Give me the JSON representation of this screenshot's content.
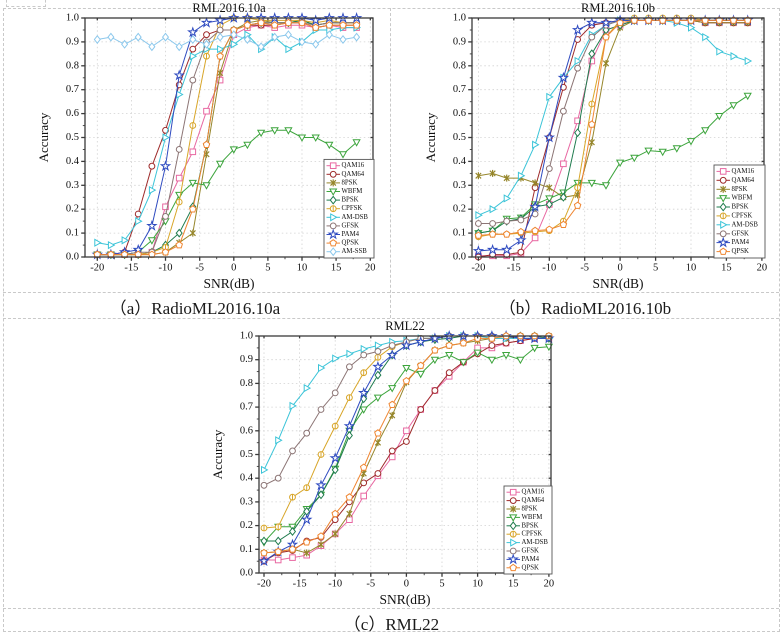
{
  "figure": {
    "captions": {
      "a": "（a）RadioML2016.10a",
      "b": "（b）RadioML2016.10b",
      "c": "（c）RML22"
    }
  },
  "series_styles": {
    "QAM16": {
      "color": "#e868a2",
      "marker": "square"
    },
    "QAM64": {
      "color": "#9e2b2b",
      "marker": "circle"
    },
    "8PSK": {
      "color": "#96862b",
      "marker": "asterisk"
    },
    "WBFM": {
      "color": "#3ca43c",
      "marker": "triangle-down"
    },
    "BPSK": {
      "color": "#1e7b4d",
      "marker": "diamond"
    },
    "CPFSK": {
      "color": "#d8a62a",
      "marker": "circle-vline"
    },
    "AM-DSB": {
      "color": "#3bc4d8",
      "marker": "triangle-right"
    },
    "GFSK": {
      "color": "#8c7575",
      "marker": "circle"
    },
    "PAM4": {
      "color": "#2f4bc0",
      "marker": "star"
    },
    "QPSK": {
      "color": "#ef8632",
      "marker": "pentagon"
    },
    "AM-SSB": {
      "color": "#8cc8ec",
      "marker": "diamond"
    }
  },
  "chart_data": [
    {
      "id": "chart-a",
      "type": "line",
      "title": "RML2016.10a",
      "xlabel": "SNR(dB)",
      "ylabel": "Accuracy",
      "x_ticks": [
        -20,
        -15,
        -10,
        -5,
        0,
        5,
        10,
        15,
        20
      ],
      "y_tick_labels": [
        "0.0",
        "0.1",
        "0.2",
        "0.3",
        "0.4",
        "0.5",
        "0.6",
        "0.7",
        "0.8",
        "0.9",
        "1.0"
      ],
      "xlim": [
        -21.8,
        20.4
      ],
      "ylim": [
        0,
        1
      ],
      "grid": true,
      "legend_position": "bottom-right",
      "x": [
        -20,
        -18,
        -16,
        -14,
        -12,
        -10,
        -8,
        -6,
        -4,
        -2,
        0,
        2,
        4,
        6,
        8,
        10,
        12,
        14,
        16,
        18
      ],
      "series": [
        {
          "name": "QAM16",
          "values": [
            0.01,
            0.01,
            0.01,
            0.01,
            0.02,
            0.21,
            0.33,
            0.44,
            0.61,
            0.74,
            0.93,
            0.96,
            0.97,
            0.96,
            0.97,
            0.97,
            0.96,
            0.97,
            0.96,
            0.96
          ]
        },
        {
          "name": "QAM64",
          "values": [
            0.01,
            0.01,
            0.02,
            0.18,
            0.38,
            0.53,
            0.72,
            0.87,
            0.93,
            0.95,
            0.95,
            0.97,
            0.97,
            0.97,
            0.98,
            0.98,
            0.96,
            0.97,
            0.97,
            0.97
          ]
        },
        {
          "name": "8PSK",
          "values": [
            0.01,
            0.01,
            0.01,
            0.01,
            0.01,
            0.02,
            0.06,
            0.1,
            0.43,
            0.77,
            0.95,
            0.98,
            0.99,
            0.98,
            0.98,
            0.99,
            0.97,
            0.98,
            0.98,
            0.98
          ]
        },
        {
          "name": "WBFM",
          "values": [
            0.01,
            0.01,
            0.01,
            0.02,
            0.07,
            0.15,
            0.26,
            0.31,
            0.3,
            0.39,
            0.45,
            0.47,
            0.52,
            0.53,
            0.53,
            0.5,
            0.5,
            0.47,
            0.43,
            0.48
          ]
        },
        {
          "name": "BPSK",
          "values": [
            0.01,
            0.01,
            0.01,
            0.01,
            0.02,
            0.05,
            0.1,
            0.21,
            0.47,
            0.84,
            0.95,
            0.97,
            0.98,
            0.98,
            0.98,
            0.99,
            0.97,
            0.98,
            0.98,
            0.98
          ]
        },
        {
          "name": "CPFSK",
          "values": [
            0.01,
            0.01,
            0.01,
            0.01,
            0.02,
            0.04,
            0.23,
            0.55,
            0.84,
            0.97,
            1.0,
            1.0,
            0.99,
            0.99,
            0.99,
            0.99,
            0.98,
            0.99,
            0.98,
            0.98
          ]
        },
        {
          "name": "AM-DSB",
          "values": [
            0.06,
            0.05,
            0.07,
            0.15,
            0.28,
            0.5,
            0.68,
            0.84,
            0.87,
            0.87,
            0.89,
            0.93,
            0.87,
            0.92,
            0.87,
            0.9,
            0.95,
            0.95,
            0.96,
            0.96
          ]
        },
        {
          "name": "GFSK",
          "values": [
            0.01,
            0.01,
            0.01,
            0.02,
            0.02,
            0.17,
            0.45,
            0.74,
            0.9,
            0.95,
            0.95,
            0.97,
            0.98,
            0.98,
            0.98,
            0.98,
            0.97,
            0.98,
            0.98,
            0.98
          ]
        },
        {
          "name": "PAM4",
          "values": [
            0.01,
            0.01,
            0.02,
            0.03,
            0.13,
            0.38,
            0.76,
            0.94,
            0.98,
            0.99,
            1.0,
            1.0,
            1.0,
            1.0,
            1.0,
            1.0,
            0.99,
            1.0,
            1.0,
            1.0
          ]
        },
        {
          "name": "QPSK",
          "values": [
            0.01,
            0.01,
            0.01,
            0.01,
            0.01,
            0.02,
            0.05,
            0.2,
            0.47,
            0.84,
            0.95,
            0.97,
            0.98,
            0.97,
            0.98,
            0.98,
            0.96,
            0.97,
            0.97,
            0.97
          ]
        },
        {
          "name": "AM-SSB",
          "values": [
            0.91,
            0.92,
            0.89,
            0.92,
            0.88,
            0.92,
            0.88,
            0.91,
            0.89,
            0.92,
            0.93,
            0.91,
            0.88,
            0.92,
            0.93,
            0.9,
            0.89,
            0.93,
            0.91,
            0.92
          ]
        }
      ]
    },
    {
      "id": "chart-b",
      "type": "line",
      "title": "RML2016.10b",
      "xlabel": "SNR(dB)",
      "ylabel": "Accuracy",
      "x_ticks": [
        -20,
        -15,
        -10,
        -5,
        0,
        5,
        10,
        15,
        20
      ],
      "y_tick_labels": [
        "0.0",
        "0.1",
        "0.2",
        "0.3",
        "0.4",
        "0.5",
        "0.6",
        "0.7",
        "0.8",
        "0.9",
        "1.0"
      ],
      "xlim": [
        -20.9,
        20.3
      ],
      "ylim": [
        0,
        1
      ],
      "grid": true,
      "legend_position": "bottom-right",
      "x": [
        -20,
        -18,
        -16,
        -14,
        -12,
        -10,
        -8,
        -6,
        -4,
        -2,
        0,
        2,
        4,
        6,
        8,
        10,
        12,
        14,
        16,
        18
      ],
      "series": [
        {
          "name": "QAM16",
          "values": [
            0.005,
            0.005,
            0.005,
            0.015,
            0.08,
            0.22,
            0.39,
            0.57,
            0.82,
            0.95,
            0.97,
            0.99,
            0.99,
            0.99,
            0.99,
            0.99,
            0.98,
            0.98,
            0.98,
            0.98
          ]
        },
        {
          "name": "QAM64",
          "values": [
            0.0,
            0.01,
            0.01,
            0.02,
            0.29,
            0.5,
            0.71,
            0.91,
            0.97,
            0.98,
            0.99,
            0.99,
            0.99,
            0.99,
            0.99,
            0.99,
            0.98,
            0.98,
            0.98,
            0.98
          ]
        },
        {
          "name": "8PSK",
          "values": [
            0.34,
            0.35,
            0.33,
            0.33,
            0.31,
            0.29,
            0.25,
            0.26,
            0.48,
            0.81,
            0.96,
            0.99,
            0.99,
            0.99,
            0.99,
            0.99,
            0.98,
            0.98,
            0.98,
            0.98
          ]
        },
        {
          "name": "WBFM",
          "values": [
            0.1,
            0.11,
            0.16,
            0.165,
            0.22,
            0.245,
            0.27,
            0.31,
            0.31,
            0.3,
            0.395,
            0.415,
            0.445,
            0.44,
            0.455,
            0.485,
            0.53,
            0.59,
            0.635,
            0.675
          ]
        },
        {
          "name": "BPSK",
          "values": [
            0.1,
            0.11,
            0.15,
            0.16,
            0.21,
            0.22,
            0.25,
            0.52,
            0.85,
            0.95,
            0.97,
            0.99,
            0.99,
            0.99,
            0.99,
            0.99,
            0.99,
            0.99,
            0.99,
            0.99
          ]
        },
        {
          "name": "CPFSK",
          "values": [
            0.085,
            0.095,
            0.095,
            0.1,
            0.105,
            0.11,
            0.15,
            0.29,
            0.64,
            0.92,
            0.99,
            1.0,
            1.0,
            1.0,
            1.0,
            1.0,
            0.99,
            0.99,
            0.99,
            0.99
          ]
        },
        {
          "name": "AM-DSB",
          "values": [
            0.175,
            0.2,
            0.245,
            0.34,
            0.47,
            0.67,
            0.75,
            0.82,
            0.93,
            0.97,
            0.99,
            0.99,
            0.99,
            0.99,
            0.98,
            0.96,
            0.92,
            0.86,
            0.84,
            0.82
          ]
        },
        {
          "name": "GFSK",
          "values": [
            0.14,
            0.14,
            0.15,
            0.155,
            0.18,
            0.37,
            0.61,
            0.79,
            0.92,
            0.97,
            0.99,
            0.99,
            0.99,
            0.99,
            0.99,
            0.99,
            0.99,
            0.99,
            0.99,
            0.99
          ]
        },
        {
          "name": "PAM4",
          "values": [
            0.025,
            0.03,
            0.03,
            0.07,
            0.21,
            0.5,
            0.75,
            0.95,
            0.98,
            0.98,
            0.99,
            0.99,
            0.99,
            0.99,
            0.99,
            0.99,
            0.99,
            0.99,
            0.99,
            0.99
          ]
        },
        {
          "name": "QPSK",
          "values": [
            0.09,
            0.095,
            0.095,
            0.105,
            0.11,
            0.115,
            0.135,
            0.215,
            0.555,
            0.92,
            0.98,
            0.99,
            0.99,
            0.99,
            0.99,
            0.99,
            0.99,
            0.99,
            0.99,
            0.99
          ]
        }
      ]
    },
    {
      "id": "chart-c",
      "type": "line",
      "title": "RML22",
      "xlabel": "SNR(dB)",
      "ylabel": "Accuracy",
      "x_ticks": [
        -20,
        -15,
        -10,
        -5,
        0,
        5,
        10,
        15,
        20
      ],
      "y_tick_labels": [
        "0.0",
        "0.1",
        "0.2",
        "0.3",
        "0.4",
        "0.5",
        "0.6",
        "0.7",
        "0.8",
        "0.9",
        "1.0"
      ],
      "xlim": [
        -20.7,
        20.3
      ],
      "ylim": [
        0,
        1
      ],
      "grid": true,
      "legend_position": "bottom-right",
      "x": [
        -20,
        -18,
        -16,
        -14,
        -12,
        -10,
        -8,
        -6,
        -4,
        -2,
        0,
        2,
        4,
        6,
        8,
        10,
        12,
        14,
        16,
        18,
        20
      ],
      "series": [
        {
          "name": "QAM16",
          "values": [
            0.055,
            0.055,
            0.065,
            0.075,
            0.115,
            0.165,
            0.225,
            0.325,
            0.41,
            0.49,
            0.6,
            0.69,
            0.77,
            0.83,
            0.89,
            0.95,
            0.95,
            0.97,
            0.98,
            0.99,
            0.99
          ]
        },
        {
          "name": "QAM64",
          "values": [
            0.05,
            0.085,
            0.095,
            0.135,
            0.15,
            0.225,
            0.3,
            0.38,
            0.42,
            0.515,
            0.555,
            0.69,
            0.77,
            0.845,
            0.89,
            0.925,
            0.96,
            0.97,
            0.98,
            0.99,
            0.99
          ]
        },
        {
          "name": "8PSK",
          "values": [
            0.085,
            0.09,
            0.1,
            0.085,
            0.12,
            0.165,
            0.25,
            0.42,
            0.55,
            0.665,
            0.805,
            0.875,
            0.94,
            0.96,
            0.97,
            0.98,
            0.99,
            0.99,
            1.0,
            1.0,
            1.0
          ]
        },
        {
          "name": "WBFM",
          "values": [
            0.13,
            0.195,
            0.195,
            0.27,
            0.33,
            0.44,
            0.6,
            0.69,
            0.74,
            0.78,
            0.865,
            0.84,
            0.9,
            0.92,
            0.89,
            0.93,
            0.9,
            0.92,
            0.9,
            0.95,
            0.955
          ]
        },
        {
          "name": "BPSK",
          "values": [
            0.135,
            0.135,
            0.175,
            0.26,
            0.33,
            0.435,
            0.58,
            0.735,
            0.835,
            0.92,
            0.96,
            0.975,
            0.985,
            0.99,
            1.0,
            1.0,
            1.0,
            1.0,
            1.0,
            1.0,
            0.99
          ]
        },
        {
          "name": "CPFSK",
          "values": [
            0.19,
            0.195,
            0.32,
            0.36,
            0.5,
            0.62,
            0.74,
            0.845,
            0.91,
            0.955,
            0.975,
            0.99,
            0.99,
            1.0,
            1.0,
            1.0,
            1.0,
            1.0,
            1.0,
            1.0,
            1.0
          ]
        },
        {
          "name": "AM-DSB",
          "values": [
            0.435,
            0.56,
            0.705,
            0.78,
            0.865,
            0.905,
            0.925,
            0.945,
            0.96,
            0.975,
            0.98,
            0.99,
            0.99,
            1.0,
            1.0,
            1.0,
            0.99,
            0.99,
            0.99,
            0.99,
            0.99
          ]
        },
        {
          "name": "GFSK",
          "values": [
            0.37,
            0.4,
            0.515,
            0.59,
            0.69,
            0.76,
            0.87,
            0.92,
            0.935,
            0.96,
            0.975,
            0.99,
            0.99,
            1.0,
            1.0,
            1.0,
            1.0,
            1.0,
            1.0,
            1.0,
            1.0
          ]
        },
        {
          "name": "PAM4",
          "values": [
            0.05,
            0.09,
            0.12,
            0.225,
            0.37,
            0.485,
            0.62,
            0.76,
            0.87,
            0.92,
            0.96,
            0.975,
            0.99,
            1.0,
            1.0,
            1.0,
            1.0,
            1.0,
            0.99,
            0.99,
            0.99
          ]
        },
        {
          "name": "QPSK",
          "values": [
            0.085,
            0.09,
            0.1,
            0.13,
            0.155,
            0.25,
            0.32,
            0.445,
            0.59,
            0.71,
            0.81,
            0.875,
            0.94,
            0.96,
            0.97,
            0.99,
            0.99,
            1.0,
            1.0,
            1.0,
            1.0
          ]
        }
      ]
    }
  ]
}
